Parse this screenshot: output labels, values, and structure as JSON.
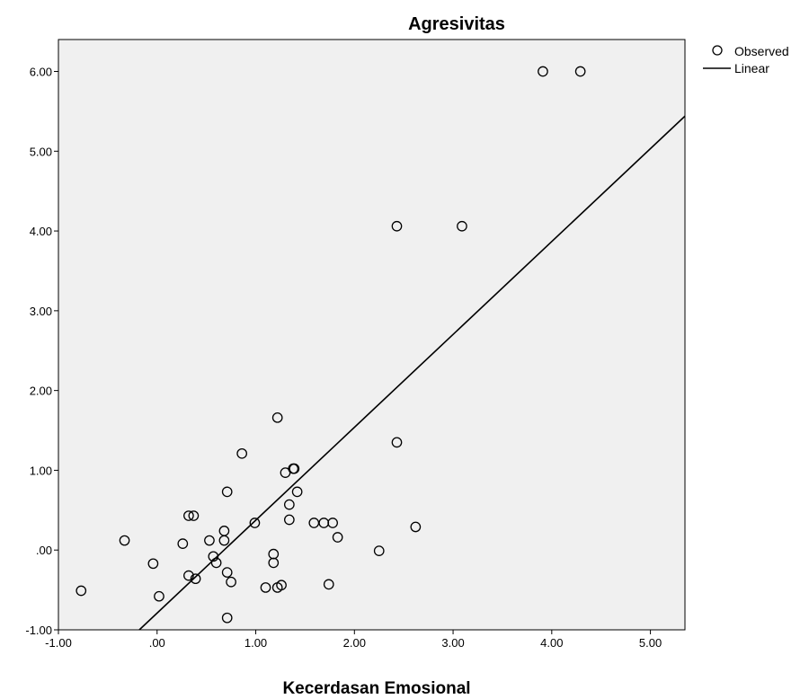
{
  "chart_data": {
    "type": "scatter",
    "title": "Agresivitas",
    "xlabel": "Kecerdasan Emosional",
    "ylabel": "",
    "xlim": [
      -1.0,
      5.35
    ],
    "ylim": [
      -1.0,
      6.4
    ],
    "xticks": [
      -1,
      0,
      1,
      2,
      3,
      4,
      5
    ],
    "xtick_labels": [
      "-1.00",
      ".00",
      "1.00",
      "2.00",
      "3.00",
      "4.00",
      "5.00"
    ],
    "yticks": [
      -1,
      0,
      1,
      2,
      3,
      4,
      5,
      6
    ],
    "ytick_labels": [
      "-1.00",
      ".00",
      "1.00",
      "2.00",
      "3.00",
      "4.00",
      "5.00",
      "6.00"
    ],
    "grid": false,
    "legend_position": "top-right",
    "plot_background": "#f0f0f0",
    "series": [
      {
        "name": "Observed",
        "kind": "points",
        "points": [
          [
            -0.77,
            -0.51
          ],
          [
            -0.33,
            0.12
          ],
          [
            -0.04,
            -0.17
          ],
          [
            0.02,
            -0.58
          ],
          [
            0.26,
            0.08
          ],
          [
            0.32,
            0.43
          ],
          [
            0.37,
            0.43
          ],
          [
            0.32,
            -0.32
          ],
          [
            0.39,
            -0.36
          ],
          [
            0.53,
            0.12
          ],
          [
            0.57,
            -0.08
          ],
          [
            0.6,
            -0.16
          ],
          [
            0.68,
            0.24
          ],
          [
            0.68,
            0.12
          ],
          [
            0.71,
            0.73
          ],
          [
            0.71,
            -0.28
          ],
          [
            0.71,
            -0.85
          ],
          [
            0.75,
            -0.4
          ],
          [
            0.86,
            1.21
          ],
          [
            0.99,
            0.34
          ],
          [
            1.1,
            -0.47
          ],
          [
            1.18,
            -0.05
          ],
          [
            1.18,
            -0.16
          ],
          [
            1.22,
            1.66
          ],
          [
            1.22,
            -0.47
          ],
          [
            1.26,
            -0.44
          ],
          [
            1.3,
            0.97
          ],
          [
            1.34,
            0.57
          ],
          [
            1.34,
            0.38
          ],
          [
            1.38,
            1.02
          ],
          [
            1.39,
            1.02
          ],
          [
            1.42,
            0.73
          ],
          [
            1.59,
            0.34
          ],
          [
            1.69,
            0.34
          ],
          [
            1.74,
            -0.43
          ],
          [
            1.78,
            0.34
          ],
          [
            1.83,
            0.16
          ],
          [
            2.25,
            -0.01
          ],
          [
            2.43,
            4.06
          ],
          [
            2.43,
            1.35
          ],
          [
            2.62,
            0.29
          ],
          [
            3.09,
            4.06
          ],
          [
            3.91,
            6.0
          ],
          [
            4.29,
            6.0
          ]
        ]
      },
      {
        "name": "Linear",
        "kind": "line",
        "points": [
          [
            -0.18,
            -1.0
          ],
          [
            5.35,
            5.44
          ]
        ]
      }
    ]
  },
  "colors": {
    "plot_background": "#f0f0f0",
    "marker_stroke": "#000000",
    "line": "#000000"
  }
}
